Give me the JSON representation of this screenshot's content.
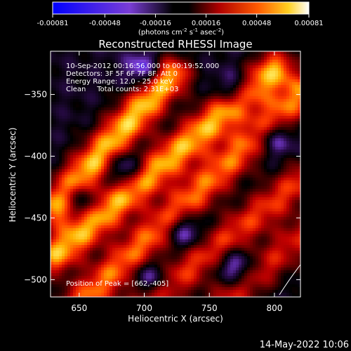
{
  "colorbar": {
    "tick_labels": [
      "-0.00081",
      "-0.00048",
      "-0.00016",
      "0.00016",
      "0.00048",
      "0.00081"
    ],
    "unit_prefix": "(photons cm",
    "unit_exp1": "-2",
    "unit_mid": " s",
    "unit_exp2": "-1",
    "unit_mid2": " asec",
    "unit_exp3": "-2",
    "unit_suffix": ")"
  },
  "plot": {
    "title": "Reconstructed RHESSI Image",
    "xlabel": "Heliocentric X (arcsec)",
    "ylabel": "Heliocentric Y (arcsec)",
    "annotation_lines": [
      "10-Sep-2012 00:16:56.000 to 00:19:52.000",
      "Detectors: 3F 5F 6F 7F 8F, Att 0",
      "Energy Range: 12.0 - 25.0 keV",
      "Clean     Total counts: 2.31E+03"
    ],
    "peak_label": "Position of Peak = [662,-405]",
    "footer_date": "14-May-2022 10:06"
  },
  "chart_data": {
    "type": "heatmap",
    "title": "Reconstructed RHESSI Image",
    "xlabel": "Heliocentric X (arcsec)",
    "ylabel": "Heliocentric Y (arcsec)",
    "xlim": [
      628,
      820
    ],
    "ylim": [
      -514,
      -315
    ],
    "x_ticks": [
      650,
      700,
      750,
      800
    ],
    "y_ticks": [
      -350,
      -400,
      -450,
      -500
    ],
    "value_range": [
      -0.00081,
      0.00081
    ],
    "unit": "photons cm^-2 s^-1 asec^-2",
    "peak_position": [
      662,
      -405
    ],
    "colormap": [
      "#0000ff",
      "#7a3dd6",
      "#2a0b4a",
      "#000000",
      "#5a0000",
      "#c00000",
      "#ff3b00",
      "#ffb000",
      "#ffff80",
      "#ffffff"
    ],
    "ridges": [
      {
        "x0": 632,
        "y0": -440,
        "x1": 720,
        "y1": -335,
        "strength": 1.0
      },
      {
        "x0": 632,
        "y0": -480,
        "x1": 800,
        "y1": -330,
        "strength": 0.95
      },
      {
        "x0": 650,
        "y0": -520,
        "x1": 820,
        "y1": -350,
        "strength": 0.8
      },
      {
        "x0": 700,
        "y0": -520,
        "x1": 820,
        "y1": -420,
        "strength": 0.65
      },
      {
        "x0": 760,
        "y0": -520,
        "x1": 820,
        "y1": -465,
        "strength": 0.55
      }
    ],
    "troughs": [
      {
        "x": 700,
        "y": -330
      },
      {
        "x": 770,
        "y": -345
      },
      {
        "x": 800,
        "y": -385
      },
      {
        "x": 685,
        "y": -410
      },
      {
        "x": 650,
        "y": -435
      },
      {
        "x": 730,
        "y": -460
      },
      {
        "x": 705,
        "y": -500
      },
      {
        "x": 770,
        "y": -490
      }
    ]
  }
}
